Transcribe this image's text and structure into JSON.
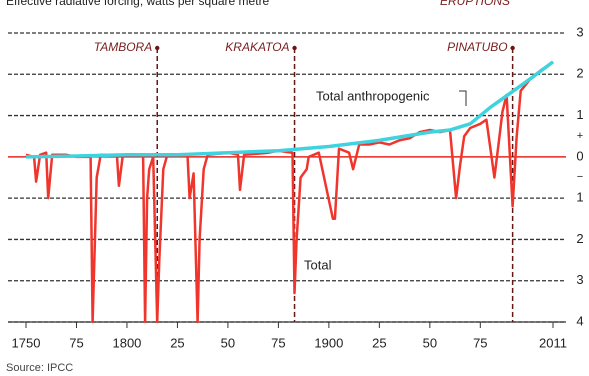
{
  "chart_data": {
    "type": "line",
    "title": "Effective radiative forcing, watts per square metre",
    "subtitle": "ERUPTIONS",
    "source": "Source: IPCC",
    "sign_labels": [
      "+",
      "−"
    ],
    "xlim": [
      1750,
      2011
    ],
    "xticks": [
      1750,
      {
        "value": 1775,
        "label": "75"
      },
      1800,
      {
        "value": 1825,
        "label": "25"
      },
      {
        "value": 1850,
        "label": "50"
      },
      {
        "value": 1875,
        "label": "75"
      },
      1900,
      {
        "value": 1925,
        "label": "25"
      },
      {
        "value": 1950,
        "label": "50"
      },
      {
        "value": 1975,
        "label": "75"
      },
      2011
    ],
    "ylim": [
      -4,
      3
    ],
    "yticks": [
      3,
      2,
      1,
      0,
      {
        "value": -1,
        "label": "1"
      },
      {
        "value": -2,
        "label": "2"
      },
      {
        "value": -3,
        "label": "3"
      },
      {
        "value": -4,
        "label": "4"
      }
    ],
    "grid": true,
    "zero_line_color": "#e8261f",
    "eruptions": [
      {
        "label": "TAMBORA",
        "x": 1815
      },
      {
        "label": "KRAKATOA",
        "x": 1883
      },
      {
        "label": "PINATUBO",
        "x": 1991
      }
    ],
    "series": [
      {
        "name": "Total",
        "color": "#f0352c",
        "x": [
          1750,
          1754,
          1755,
          1757,
          1760,
          1761,
          1763,
          1770,
          1775,
          1782,
          1783,
          1785,
          1787,
          1795,
          1796,
          1798,
          1808,
          1809,
          1810,
          1811,
          1813,
          1815,
          1816,
          1818,
          1820,
          1830,
          1831,
          1833,
          1835,
          1836,
          1838,
          1840,
          1850,
          1855,
          1856,
          1858,
          1870,
          1875,
          1882,
          1883,
          1884,
          1886,
          1889,
          1890,
          1895,
          1902,
          1903,
          1905,
          1910,
          1912,
          1915,
          1920,
          1925,
          1930,
          1935,
          1940,
          1945,
          1950,
          1955,
          1960,
          1963,
          1965,
          1967,
          1970,
          1975,
          1978,
          1982,
          1984,
          1986,
          1988,
          1991,
          1993,
          1995,
          2000,
          2005,
          2011
        ],
        "values": [
          0.05,
          0.0,
          -0.6,
          0.05,
          0.1,
          -1.0,
          0.05,
          0.05,
          0.0,
          0.0,
          -4.0,
          -0.5,
          0.05,
          0.05,
          -0.7,
          0.05,
          0.05,
          -4.0,
          -1.0,
          -0.3,
          0.0,
          -4.0,
          -2.5,
          -0.3,
          0.05,
          0.05,
          -1.0,
          -0.4,
          -4.0,
          -2.0,
          -0.3,
          0.05,
          0.1,
          0.05,
          -0.8,
          0.05,
          0.1,
          0.15,
          0.1,
          -3.3,
          -2.0,
          -0.5,
          -0.3,
          0.0,
          0.1,
          -1.5,
          -1.5,
          0.2,
          0.1,
          -0.3,
          0.3,
          0.3,
          0.35,
          0.3,
          0.4,
          0.45,
          0.6,
          0.65,
          0.6,
          0.65,
          -1.0,
          -0.2,
          0.5,
          0.7,
          0.8,
          0.9,
          -0.5,
          0.3,
          1.1,
          1.5,
          -1.2,
          0.5,
          1.6,
          1.9,
          2.1,
          2.3
        ]
      },
      {
        "name": "Total anthropogenic",
        "color": "#3fd3e0",
        "x": [
          1750,
          1775,
          1800,
          1825,
          1850,
          1875,
          1900,
          1925,
          1950,
          1960,
          1970,
          1980,
          1990,
          2000,
          2011
        ],
        "values": [
          0.0,
          0.02,
          0.05,
          0.05,
          0.1,
          0.15,
          0.25,
          0.4,
          0.6,
          0.65,
          0.8,
          1.2,
          1.55,
          1.9,
          2.3
        ]
      }
    ]
  }
}
